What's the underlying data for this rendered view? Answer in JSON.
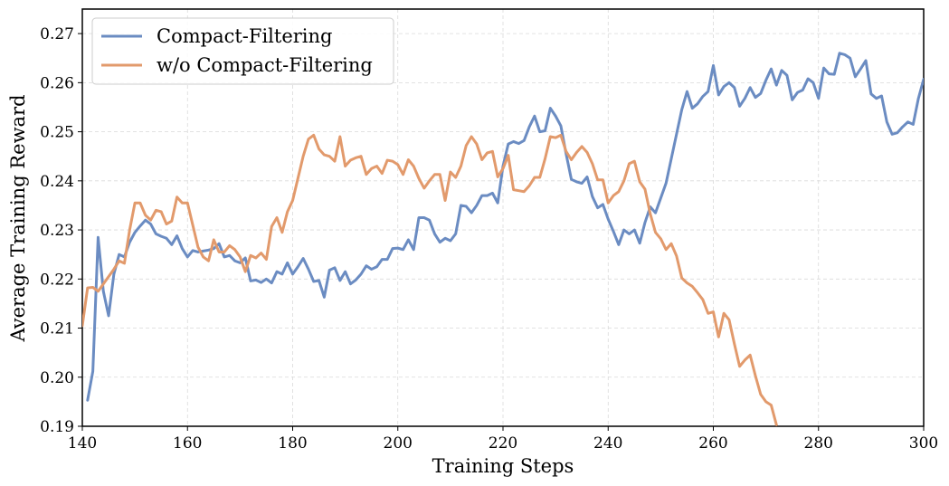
{
  "chart_data": {
    "type": "line",
    "xlabel": "Training Steps",
    "ylabel": "Average Training Reward",
    "xlim": [
      140,
      300
    ],
    "ylim": [
      0.19,
      0.275
    ],
    "xticks": [
      "140",
      "160",
      "180",
      "200",
      "220",
      "240",
      "260",
      "280",
      "300"
    ],
    "yticks": [
      "0.19",
      "0.20",
      "0.21",
      "0.22",
      "0.23",
      "0.24",
      "0.25",
      "0.26",
      "0.27"
    ],
    "grid": true,
    "legend_position": "top-left",
    "series": [
      {
        "name": "Compact-Filtering",
        "color": "#6b8cc2",
        "x": [
          141,
          142,
          143,
          144,
          145,
          146,
          147,
          148,
          149,
          150,
          151,
          152,
          153,
          154,
          155,
          156,
          157,
          158,
          159,
          160,
          161,
          162,
          163,
          164,
          165,
          166,
          167,
          168,
          169,
          170,
          171,
          172,
          173,
          174,
          175,
          176,
          177,
          178,
          179,
          180,
          181,
          182,
          183,
          184,
          185,
          186,
          187,
          188,
          189,
          190,
          191,
          192,
          193,
          194,
          195,
          196,
          197,
          198,
          199,
          200,
          201,
          202,
          203,
          204,
          205,
          206,
          207,
          208,
          209,
          210,
          211,
          212,
          213,
          214,
          215,
          216,
          217,
          218,
          219,
          220,
          221,
          222,
          223,
          224,
          225,
          226,
          227,
          228,
          229,
          230,
          231,
          232,
          233,
          234,
          235,
          236,
          237,
          238,
          239,
          240,
          241,
          242,
          243,
          244,
          245,
          246,
          247,
          248,
          249,
          250,
          251,
          252,
          253,
          254,
          255,
          256,
          257,
          258,
          259,
          260,
          261,
          262,
          263,
          264,
          265,
          266,
          267,
          268,
          269,
          270,
          271,
          272,
          273,
          274,
          275,
          276,
          277,
          278,
          279,
          280,
          281,
          282,
          283,
          284,
          285,
          286,
          287,
          288,
          289,
          290,
          291,
          292,
          293,
          294,
          295,
          296,
          297,
          298,
          299,
          300
        ],
        "y": [
          0.1953,
          0.2012,
          0.2285,
          0.2175,
          0.2125,
          0.221,
          0.225,
          0.2245,
          0.2275,
          0.2295,
          0.2308,
          0.232,
          0.2312,
          0.2292,
          0.2287,
          0.2283,
          0.227,
          0.2288,
          0.2262,
          0.2245,
          0.2258,
          0.2255,
          0.2257,
          0.2259,
          0.2262,
          0.2272,
          0.2245,
          0.2248,
          0.2237,
          0.2233,
          0.2243,
          0.2196,
          0.2198,
          0.2193,
          0.22,
          0.2192,
          0.2215,
          0.221,
          0.2233,
          0.221,
          0.2225,
          0.2242,
          0.222,
          0.2195,
          0.2197,
          0.2163,
          0.2218,
          0.2223,
          0.2197,
          0.2215,
          0.219,
          0.2198,
          0.221,
          0.2227,
          0.222,
          0.2225,
          0.224,
          0.224,
          0.2262,
          0.2263,
          0.226,
          0.228,
          0.226,
          0.2325,
          0.2325,
          0.232,
          0.2292,
          0.2275,
          0.2283,
          0.2278,
          0.2292,
          0.235,
          0.2348,
          0.2335,
          0.235,
          0.237,
          0.237,
          0.2375,
          0.2355,
          0.243,
          0.2475,
          0.248,
          0.2476,
          0.2482,
          0.251,
          0.2532,
          0.25,
          0.2502,
          0.2548,
          0.2532,
          0.2512,
          0.2455,
          0.2403,
          0.2398,
          0.2395,
          0.2408,
          0.2368,
          0.2345,
          0.2352,
          0.2322,
          0.2297,
          0.227,
          0.23,
          0.2292,
          0.23,
          0.2273,
          0.2315,
          0.2347,
          0.2335,
          0.2365,
          0.2395,
          0.2445,
          0.2495,
          0.2545,
          0.2582,
          0.2548,
          0.2557,
          0.2572,
          0.2582,
          0.2635,
          0.2575,
          0.2592,
          0.26,
          0.259,
          0.2552,
          0.2568,
          0.259,
          0.257,
          0.2578,
          0.2605,
          0.2628,
          0.2595,
          0.2625,
          0.2615,
          0.2565,
          0.258,
          0.2585,
          0.2608,
          0.26,
          0.2568,
          0.263,
          0.2618,
          0.2617,
          0.266,
          0.2657,
          0.265,
          0.2612,
          0.2628,
          0.2645,
          0.2577,
          0.2568,
          0.2573,
          0.252,
          0.2495,
          0.2498,
          0.251,
          0.252,
          0.2515,
          0.2568,
          0.2607
        ]
      },
      {
        "name": "w/o Compact-Filtering",
        "color": "#e29a6c",
        "x": [
          140,
          141,
          142,
          143,
          144,
          145,
          146,
          147,
          148,
          149,
          150,
          151,
          152,
          153,
          154,
          155,
          156,
          157,
          158,
          159,
          160,
          161,
          162,
          163,
          164,
          165,
          166,
          167,
          168,
          169,
          170,
          171,
          172,
          173,
          174,
          175,
          176,
          177,
          178,
          179,
          180,
          181,
          182,
          183,
          184,
          185,
          186,
          187,
          188,
          189,
          190,
          191,
          192,
          193,
          194,
          195,
          196,
          197,
          198,
          199,
          200,
          201,
          202,
          203,
          204,
          205,
          206,
          207,
          208,
          209,
          210,
          211,
          212,
          213,
          214,
          215,
          216,
          217,
          218,
          219,
          220,
          221,
          222,
          223,
          224,
          225,
          226,
          227,
          228,
          229,
          230,
          231,
          232,
          233,
          234,
          235,
          236,
          237,
          238,
          239,
          240,
          241,
          242,
          243,
          244,
          245,
          246,
          247,
          248,
          249,
          250,
          251,
          252,
          253,
          254,
          255,
          256,
          257,
          258,
          259,
          260,
          261,
          262,
          263,
          264,
          265,
          266,
          267,
          268,
          269,
          270,
          271,
          272
        ],
        "y": [
          0.2105,
          0.2182,
          0.2183,
          0.2175,
          0.219,
          0.2205,
          0.222,
          0.2237,
          0.2232,
          0.23,
          0.2355,
          0.2355,
          0.233,
          0.232,
          0.234,
          0.2337,
          0.2312,
          0.2318,
          0.2367,
          0.2355,
          0.2355,
          0.231,
          0.2265,
          0.2245,
          0.2237,
          0.228,
          0.2255,
          0.2255,
          0.2268,
          0.226,
          0.2245,
          0.2215,
          0.2248,
          0.2243,
          0.2253,
          0.224,
          0.2307,
          0.2325,
          0.2295,
          0.2337,
          0.236,
          0.2405,
          0.245,
          0.2485,
          0.2493,
          0.2465,
          0.2453,
          0.245,
          0.244,
          0.249,
          0.243,
          0.2442,
          0.2447,
          0.245,
          0.2413,
          0.2425,
          0.243,
          0.2415,
          0.2442,
          0.244,
          0.2433,
          0.2413,
          0.2443,
          0.243,
          0.2405,
          0.2385,
          0.24,
          0.2413,
          0.2413,
          0.236,
          0.2418,
          0.2407,
          0.243,
          0.2472,
          0.249,
          0.2475,
          0.2443,
          0.2457,
          0.246,
          0.2408,
          0.2425,
          0.2452,
          0.2382,
          0.238,
          0.2378,
          0.239,
          0.2407,
          0.2407,
          0.2445,
          0.249,
          0.2488,
          0.2493,
          0.246,
          0.2443,
          0.2458,
          0.247,
          0.2458,
          0.2435,
          0.2402,
          0.2402,
          0.2355,
          0.237,
          0.2378,
          0.24,
          0.2435,
          0.244,
          0.2398,
          0.2383,
          0.2333,
          0.2295,
          0.2282,
          0.226,
          0.2272,
          0.2247,
          0.2202,
          0.2192,
          0.2185,
          0.2172,
          0.2158,
          0.213,
          0.2133,
          0.2082,
          0.213,
          0.2117,
          0.2068,
          0.2022,
          0.2035,
          0.2045,
          0.2003,
          0.1965,
          0.195,
          0.1943,
          0.1903
        ]
      }
    ]
  }
}
